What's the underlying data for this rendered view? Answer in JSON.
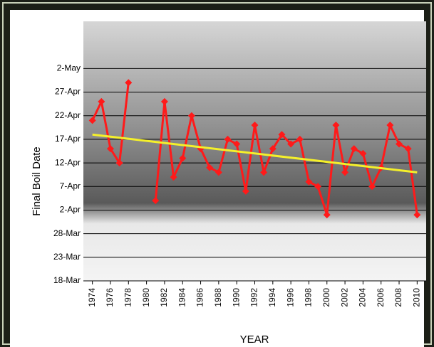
{
  "chart_data": {
    "type": "line",
    "x_label": "YEAR",
    "y_label": "Final Boil Date",
    "x": [
      1974,
      1975,
      1976,
      1977,
      1978,
      1979,
      1980,
      1981,
      1982,
      1983,
      1984,
      1985,
      1986,
      1987,
      1988,
      1989,
      1990,
      1991,
      1992,
      1993,
      1994,
      1995,
      1996,
      1997,
      1998,
      1999,
      2000,
      2001,
      2002,
      2003,
      2004,
      2005,
      2006,
      2007,
      2008,
      2009,
      2010
    ],
    "series": [
      {
        "color": "#ff1a1a",
        "values": [
          111,
          115,
          105,
          102,
          119,
          null,
          null,
          94,
          115,
          99,
          103,
          112,
          105,
          101,
          100,
          107,
          106,
          96,
          110,
          100,
          105,
          108,
          106,
          107,
          98,
          97,
          91,
          110,
          100,
          105,
          104,
          97,
          101,
          110,
          106,
          105,
          91
        ]
      }
    ],
    "trendline": {
      "x": [
        1974,
        2010
      ],
      "values": [
        108,
        100
      ],
      "color": "#f5f02a"
    },
    "xlim": [
      1973,
      2011
    ],
    "xticks": [
      1974,
      1976,
      1978,
      1980,
      1982,
      1984,
      1986,
      1988,
      1990,
      1992,
      1994,
      1996,
      1998,
      2000,
      2002,
      2004,
      2006,
      2008,
      2010
    ],
    "ylim": [
      77,
      132
    ],
    "yticks": [
      {
        "value": 77,
        "label": "18-Mar"
      },
      {
        "value": 82,
        "label": "23-Mar"
      },
      {
        "value": 87,
        "label": "28-Mar"
      },
      {
        "value": 92,
        "label": "2-Apr"
      },
      {
        "value": 97,
        "label": "7-Apr"
      },
      {
        "value": 102,
        "label": "12-Apr"
      },
      {
        "value": 107,
        "label": "17-Apr"
      },
      {
        "value": 112,
        "label": "22-Apr"
      },
      {
        "value": 117,
        "label": "27-Apr"
      },
      {
        "value": 122,
        "label": "2-May"
      }
    ],
    "grid": true
  }
}
